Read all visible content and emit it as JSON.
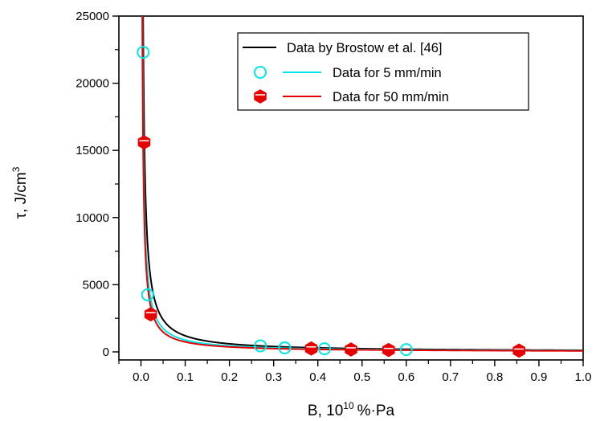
{
  "chart_data": {
    "type": "line",
    "xlabel": "B, 10",
    "xlabel_sup": "10",
    "xlabel_unit": "%·Pa",
    "ylabel": "τ, J/cm",
    "ylabel_sup": "3",
    "xlim": [
      -0.05,
      1.0
    ],
    "ylim": [
      -600,
      25000
    ],
    "x_ticks": [
      "0.0",
      "0.1",
      "0.2",
      "0.3",
      "0.4",
      "0.5",
      "0.6",
      "0.7",
      "0.8",
      "0.9",
      "1.0"
    ],
    "y_ticks": [
      "0",
      "5000",
      "10000",
      "15000",
      "20000",
      "25000"
    ],
    "grid": false,
    "legend_position": "top-right",
    "series": [
      {
        "name": "Data by Brostow et al. [46]",
        "kind": "fit-line",
        "color": "#000000",
        "model": "tau = A / B^n",
        "A": 120,
        "n": 1.0
      },
      {
        "name": "Data for 5 mm/min",
        "kind": "fit-line+points",
        "color": "#00e5e5",
        "marker": "circle",
        "model": "tau = A / B^n",
        "A": 90,
        "n": 0.99,
        "points": [
          {
            "x": 0.005,
            "y": 22300
          },
          {
            "x": 0.015,
            "y": 4250
          },
          {
            "x": 0.27,
            "y": 450
          },
          {
            "x": 0.325,
            "y": 300
          },
          {
            "x": 0.415,
            "y": 230
          },
          {
            "x": 0.6,
            "y": 170
          }
        ]
      },
      {
        "name": "Data for 50 mm/min",
        "kind": "fit-line+points",
        "color": "#e60000",
        "marker": "hexagon",
        "model": "tau = A / B^n",
        "A": 74,
        "n": 1.0,
        "points": [
          {
            "x": 0.007,
            "y": 15600
          },
          {
            "x": 0.022,
            "y": 2800
          },
          {
            "x": 0.385,
            "y": 250
          },
          {
            "x": 0.475,
            "y": 180
          },
          {
            "x": 0.56,
            "y": 140
          },
          {
            "x": 0.855,
            "y": 95
          }
        ]
      }
    ]
  }
}
